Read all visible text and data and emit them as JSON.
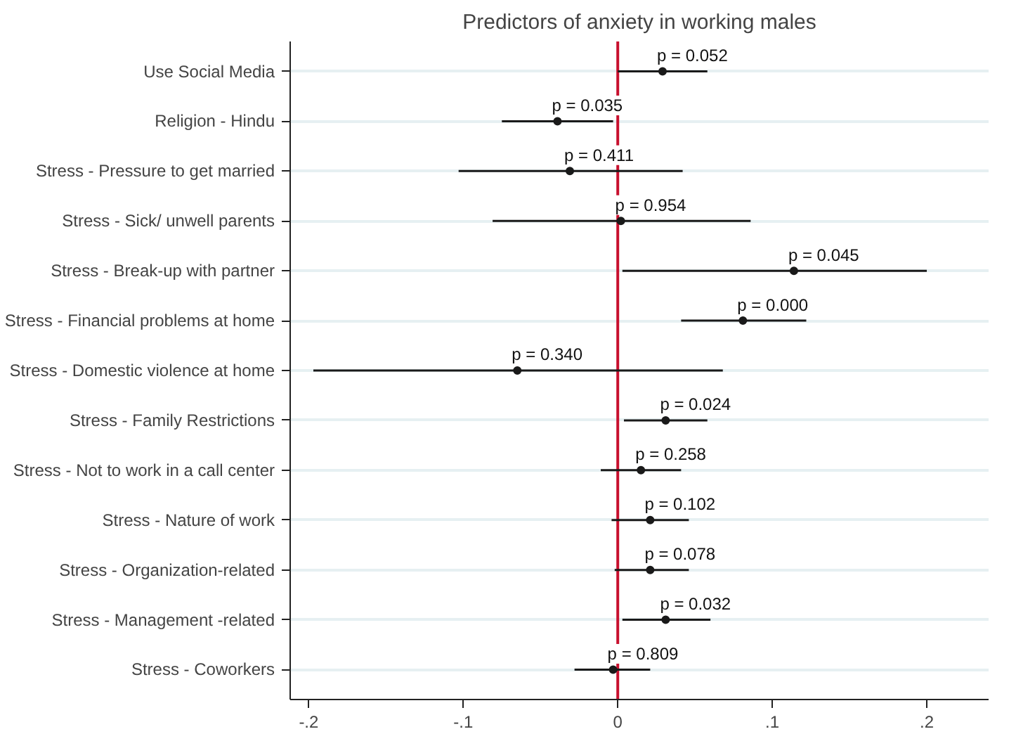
{
  "chart_data": {
    "type": "scatter",
    "orientation": "horizontal",
    "title": "Predictors of anxiety in working males",
    "categories": [
      "Use Social Media",
      "Religion - Hindu",
      "Stress - Pressure to get married",
      "Stress - Sick/ unwell parents",
      "Stress - Break-up with partner",
      "Stress - Financial problems at home",
      "Stress - Domestic violence at home",
      "Stress - Family Restrictions",
      "Stress - Not to work in a call center",
      "Stress - Nature of work",
      "Stress - Organization-related",
      "Stress - Management -related",
      "Stress - Coworkers"
    ],
    "series": [
      {
        "color": "#1a1a1a",
        "values": [
          0.029,
          -0.039,
          -0.031,
          0.002,
          0.114,
          0.081,
          -0.065,
          0.031,
          0.015,
          0.021,
          0.021,
          0.031,
          -0.003
        ],
        "errors": [
          [
            0.0,
            0.058
          ],
          [
            -0.075,
            -0.003
          ],
          [
            -0.103,
            0.042
          ],
          [
            -0.081,
            0.086
          ],
          [
            0.003,
            0.2
          ],
          [
            0.041,
            0.122
          ],
          [
            -0.197,
            0.068
          ],
          [
            0.004,
            0.058
          ],
          [
            -0.011,
            0.041
          ],
          [
            -0.004,
            0.046
          ],
          [
            -0.002,
            0.046
          ],
          [
            0.003,
            0.06
          ],
          [
            -0.028,
            0.021
          ]
        ]
      }
    ],
    "annotations": [
      {
        "text": "p = 0.052",
        "x": 0.029,
        "y": "Use Social Media"
      },
      {
        "text": "p = 0.035",
        "x": -0.039,
        "y": "Religion - Hindu"
      },
      {
        "text": "p = 0.411",
        "x": -0.031,
        "y": "Stress - Pressure to get married"
      },
      {
        "text": "p = 0.954",
        "x": 0.002,
        "y": "Stress - Sick/ unwell parents"
      },
      {
        "text": "p = 0.045",
        "x": 0.114,
        "y": "Stress - Break-up with partner"
      },
      {
        "text": "p = 0.000",
        "x": 0.081,
        "y": "Stress - Financial problems at home"
      },
      {
        "text": "p = 0.340",
        "x": -0.065,
        "y": "Stress - Domestic violence at home"
      },
      {
        "text": "p = 0.024",
        "x": 0.031,
        "y": "Stress - Family Restrictions"
      },
      {
        "text": "p = 0.258",
        "x": 0.015,
        "y": "Stress - Not to work in a call center"
      },
      {
        "text": "p = 0.102",
        "x": 0.021,
        "y": "Stress - Nature of work"
      },
      {
        "text": "p = 0.078",
        "x": 0.021,
        "y": "Stress - Organization-related"
      },
      {
        "text": "p = 0.032",
        "x": 0.031,
        "y": "Stress - Management -related"
      },
      {
        "text": "p = 0.809",
        "x": -0.003,
        "y": "Stress - Coworkers"
      }
    ],
    "ref_lines": [
      {
        "axis": "x",
        "value": 0,
        "color": "#c8102e"
      }
    ],
    "xlim": [
      -0.212,
      0.24
    ],
    "xticks": [
      {
        "value": -0.2,
        "label": "-.2"
      },
      {
        "value": -0.1,
        "label": "-.1"
      },
      0,
      {
        "value": 0.1,
        "label": ".1"
      },
      {
        "value": 0.2,
        "label": ".2"
      }
    ],
    "grid": "y",
    "marker": "circle"
  }
}
